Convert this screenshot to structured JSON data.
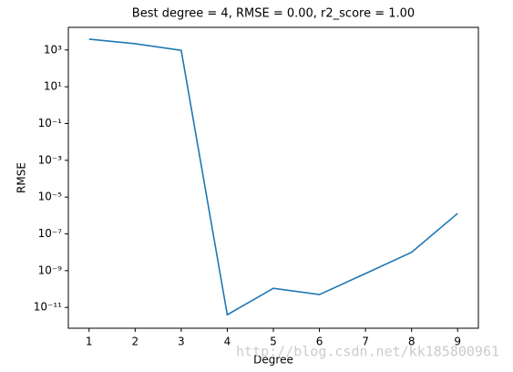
{
  "chart_data": {
    "type": "line",
    "title": "Best degree = 4, RMSE = 0.00, r2_score = 1.00",
    "xlabel": "Degree",
    "ylabel": "RMSE",
    "x": [
      1,
      2,
      3,
      4,
      5,
      6,
      7,
      8,
      9
    ],
    "series": [
      {
        "color": "#1f77b4",
        "values": [
          3900,
          2200,
          950,
          4e-12,
          1.1e-10,
          5e-11,
          7e-10,
          1e-08,
          1.3e-06
        ]
      }
    ],
    "xlim": [
      0.55,
      9.45
    ],
    "xticks": [
      1,
      2,
      3,
      4,
      5,
      6,
      7,
      8,
      9
    ],
    "ylim": [
      7.4e-13,
      17000
    ],
    "yscale": "log",
    "yticks": [
      {
        "value": 1000,
        "label": "10³"
      },
      {
        "value": 10,
        "label": "10¹"
      },
      {
        "value": 0.1,
        "label": "10⁻¹"
      },
      {
        "value": 0.001,
        "label": "10⁻³"
      },
      {
        "value": 1e-05,
        "label": "10⁻⁵"
      },
      {
        "value": 1e-07,
        "label": "10⁻⁷"
      },
      {
        "value": 1e-09,
        "label": "10⁻⁹"
      },
      {
        "value": 1e-11,
        "label": "10⁻¹¹"
      }
    ],
    "watermark": "http://blog.csdn.net/kk185800961"
  }
}
